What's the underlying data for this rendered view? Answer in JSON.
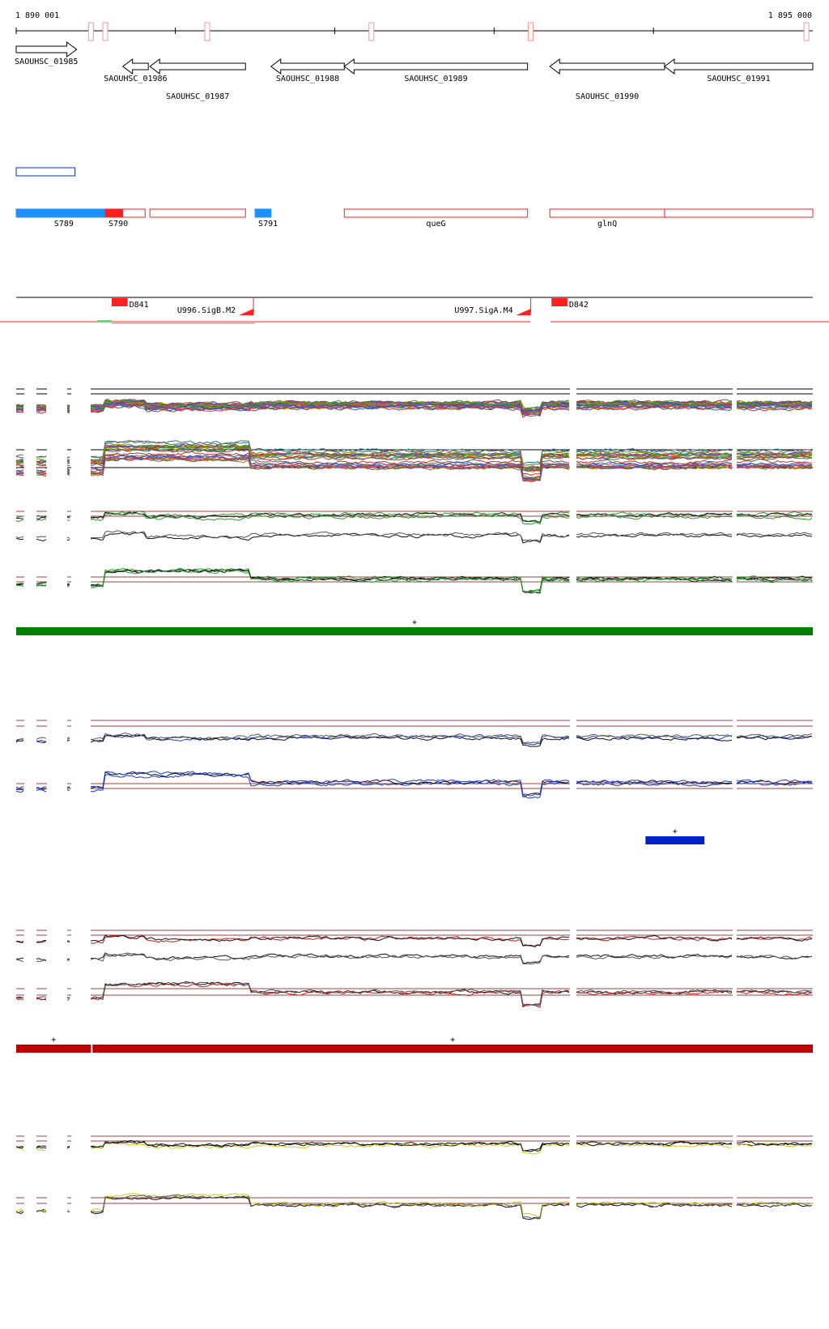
{
  "ruler": {
    "start_label": "1 890 001",
    "end_label": "1 895 000",
    "start_bp": 1890001,
    "end_bp": 1895000,
    "gap_markers_bp": [
      1890470,
      1890560,
      1891200,
      1892230,
      1893230,
      1894960
    ]
  },
  "genes": [
    {
      "id": "SAOUHSC_01985",
      "start": 1890001,
      "end": 1890380,
      "strand": "+",
      "row": 0,
      "label_side": "below"
    },
    {
      "id": "SAOUHSC_01986",
      "start": 1890670,
      "end": 1890830,
      "strand": "-",
      "row": 1,
      "label_side": "below"
    },
    {
      "id": "SAOUHSC_01987",
      "start": 1890840,
      "end": 1891440,
      "strand": "-",
      "row": 1,
      "label_side": "below2"
    },
    {
      "id": "SAOUHSC_01988",
      "start": 1891600,
      "end": 1892060,
      "strand": "-",
      "row": 1,
      "label_side": "below"
    },
    {
      "id": "SAOUHSC_01989",
      "start": 1892060,
      "end": 1893210,
      "strand": "-",
      "row": 1,
      "label_side": "below"
    },
    {
      "id": "SAOUHSC_01990",
      "start": 1893350,
      "end": 1894070,
      "strand": "-",
      "row": 1,
      "label_side": "below2"
    },
    {
      "id": "SAOUHSC_01991",
      "start": 1894070,
      "end": 1895000,
      "strand": "-",
      "row": 1,
      "label_side": "below"
    }
  ],
  "features": [
    {
      "label": "",
      "start": 1890001,
      "end": 1890370,
      "style": "outline-blue",
      "row": "upper"
    },
    {
      "label": "S789",
      "start": 1890001,
      "end": 1890560,
      "style": "fill-lightblue",
      "row": "segments"
    },
    {
      "label": "S790",
      "start": 1890560,
      "end": 1890670,
      "style": "fill-red",
      "row": "segments"
    },
    {
      "label": "",
      "start": 1890670,
      "end": 1890810,
      "style": "outline-red",
      "row": "segments"
    },
    {
      "label": "",
      "start": 1890840,
      "end": 1891440,
      "style": "outline-red",
      "row": "segments"
    },
    {
      "label": "S791",
      "start": 1891500,
      "end": 1891600,
      "style": "fill-lightblue",
      "row": "segments"
    },
    {
      "label": "queG",
      "start": 1892060,
      "end": 1893210,
      "style": "outline-red",
      "row": "segments"
    },
    {
      "label": "glnQ",
      "start": 1893350,
      "end": 1894070,
      "style": "outline-red",
      "row": "segments"
    },
    {
      "label": "",
      "start": 1894070,
      "end": 1895000,
      "style": "outline-red",
      "row": "segments"
    }
  ],
  "transcription_units": [
    {
      "label": "D841",
      "start": 1890600,
      "end": 1890700,
      "type": "block"
    },
    {
      "label": "U996.SigB.M2",
      "start": 1891390,
      "end": 1891490,
      "type": "promoter"
    },
    {
      "label": "U997.SigA.M4",
      "start": 1893130,
      "end": 1893230,
      "type": "promoter"
    },
    {
      "label": "D842",
      "start": 1893360,
      "end": 1893460,
      "type": "block"
    }
  ],
  "segment_bars": [
    {
      "color": "#008000",
      "start": 1890001,
      "end": 1895000,
      "sign": "+"
    },
    {
      "color": "#0022cc",
      "start": 1893950,
      "end": 1894320,
      "sign": "+"
    },
    {
      "color": "#c00000",
      "start": 1890001,
      "end": 1890470,
      "sign": "+"
    },
    {
      "color": "#c00000",
      "start": 1890480,
      "end": 1895000,
      "sign": "+"
    }
  ],
  "colors": {
    "gene_outline": "#000000",
    "feature_red": "#ff2020",
    "feature_blue": "#0033aa",
    "feature_lightblue": "#1e90ff",
    "threshold": "#a04040",
    "green_series": "#2a9a2a",
    "blue_series": "#1a3ad0",
    "red_series": "#d01818",
    "yellow_series": "#d0d010"
  }
}
